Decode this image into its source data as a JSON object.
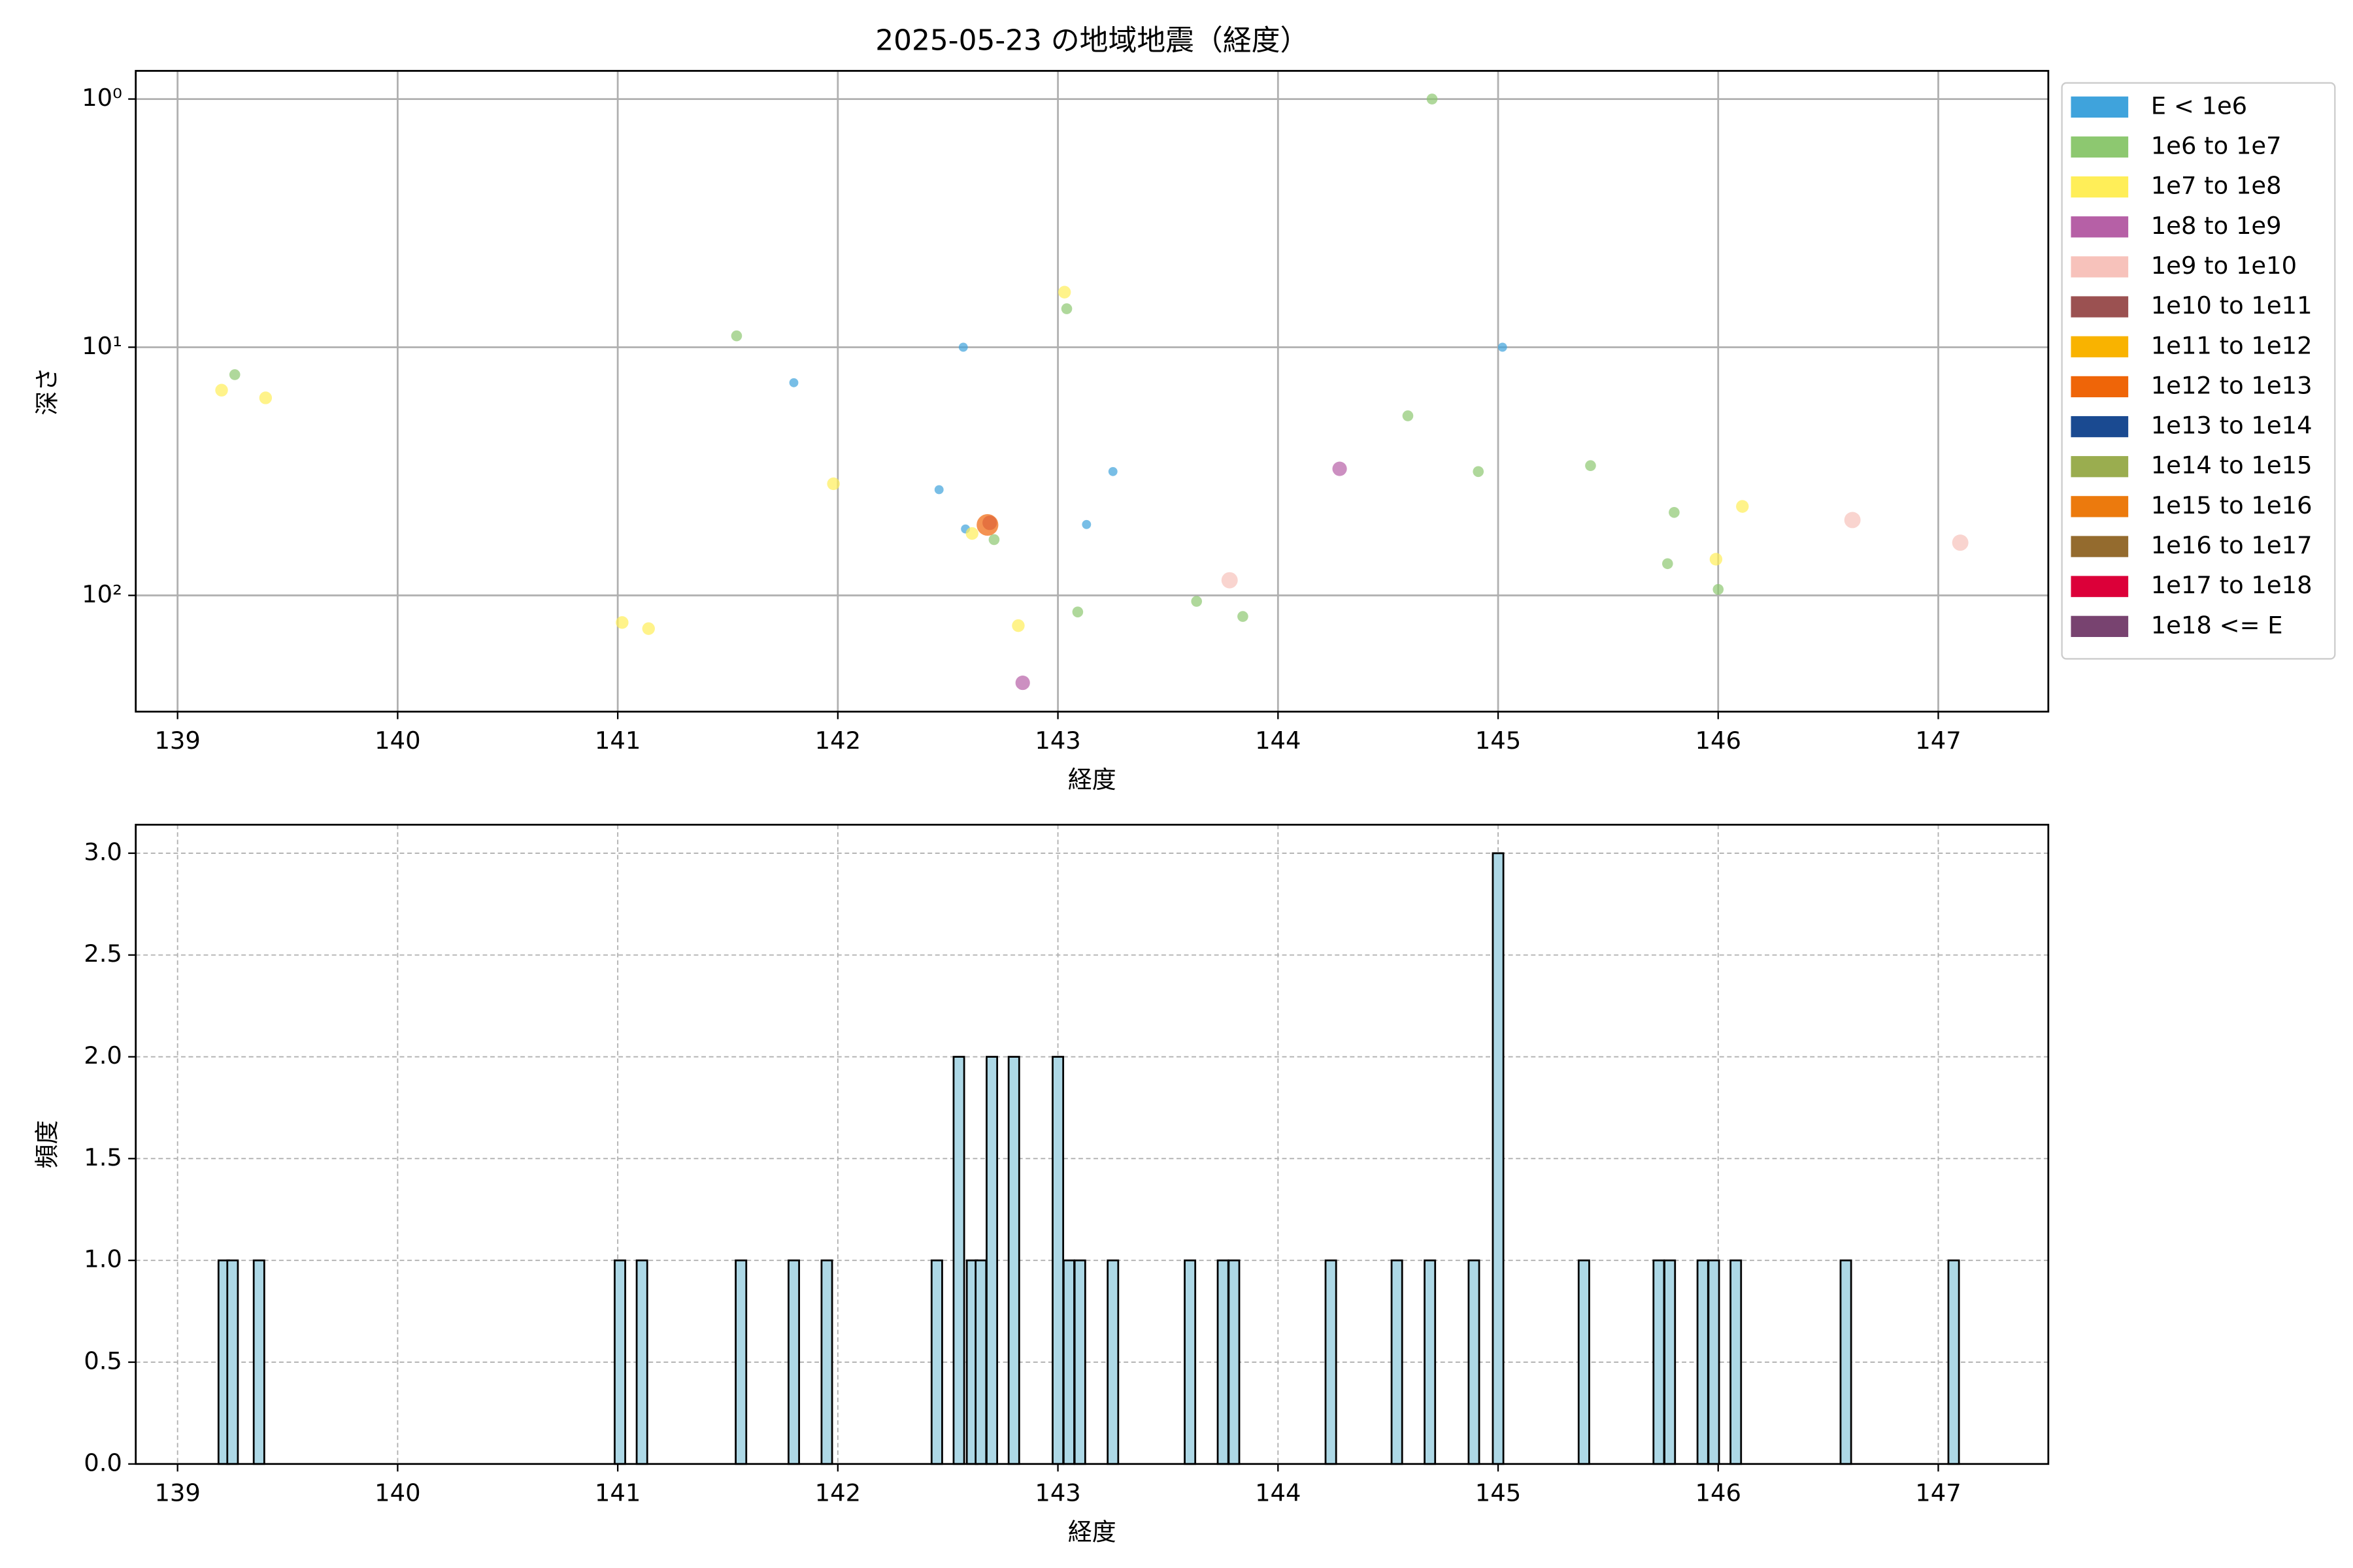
{
  "chart_data": [
    {
      "type": "scatter",
      "title": "2025-05-23 の地域地震（経度）",
      "xlabel": "経度",
      "ylabel": "深さ",
      "xlim": [
        138.81,
        147.5
      ],
      "xticks": [
        139,
        140,
        141,
        142,
        143,
        144,
        145,
        146,
        147
      ],
      "ylim": [
        0.77,
        294
      ],
      "y_log": true,
      "y_inverted": true,
      "yticks": [
        {
          "value": 1,
          "label": "10⁰"
        },
        {
          "value": 10,
          "label": "10¹"
        },
        {
          "value": 100,
          "label": "10²"
        }
      ],
      "grid": true,
      "grid_style": "solid",
      "legend": "outside upper right",
      "alpha": 0.7,
      "series": [
        {
          "name": "E < 1e6",
          "color": "#3fa3dc",
          "x": [
            142.57,
            141.8,
            142.46,
            142.58,
            143.13,
            143.25,
            145.02
          ],
          "values": [
            10,
            13.9,
            37.5,
            54,
            51.8,
            31.7,
            10
          ]
        },
        {
          "name": "1e6 to 1e7",
          "color": "#8dc870",
          "x": [
            144.7,
            139.26,
            141.54,
            143.04,
            144.59,
            144.91,
            145.42,
            145.8,
            145.77,
            146.0,
            142.71,
            143.09,
            143.63,
            143.84
          ],
          "values": [
            1,
            12.9,
            9.0,
            7.0,
            18.9,
            31.7,
            30.0,
            46.3,
            74.5,
            94.6,
            59.6,
            116.6,
            105.7,
            121.6
          ]
        },
        {
          "name": "1e7 to 1e8",
          "color": "#ffee58",
          "x": [
            139.2,
            139.4,
            143.03,
            141.98,
            142.61,
            141.02,
            141.14,
            142.82,
            146.11,
            145.99
          ],
          "values": [
            14.9,
            16.0,
            6.0,
            35.5,
            56.3,
            128.6,
            136.1,
            132.4,
            43.8,
            71.5
          ]
        },
        {
          "name": "1e8 to 1e9",
          "color": "#b660a6",
          "x": [
            144.28,
            142.84,
            142.69
          ],
          "values": [
            30.9,
            225,
            51
          ]
        },
        {
          "name": "1e9 to 1e10",
          "color": "#f7c2bb",
          "x": [
            143.78,
            146.61,
            147.1
          ],
          "values": [
            86.9,
            49.7,
            61.3
          ]
        },
        {
          "name": "1e10 to 1e11",
          "color": "#9b5151",
          "x": [],
          "values": []
        },
        {
          "name": "1e11 to 1e12",
          "color": "#f9b300",
          "x": [],
          "values": []
        },
        {
          "name": "1e12 to 1e13",
          "color": "#ef6508",
          "x": [
            142.68
          ],
          "values": [
            52
          ]
        },
        {
          "name": "1e13 to 1e14",
          "color": "#1a4a91",
          "x": [],
          "values": []
        },
        {
          "name": "1e14 to 1e15",
          "color": "#9aad4f",
          "x": [],
          "values": []
        },
        {
          "name": "1e15 to 1e16",
          "color": "#ec7a0d",
          "x": [],
          "values": []
        },
        {
          "name": "1e16 to 1e17",
          "color": "#946b2e",
          "x": [],
          "values": []
        },
        {
          "name": "1e17 to 1e18",
          "color": "#dc0039",
          "x": [],
          "values": []
        },
        {
          "name": "1e18 <= E",
          "color": "#784370",
          "x": [],
          "values": []
        }
      ]
    },
    {
      "type": "bar",
      "xlabel": "経度",
      "ylabel": "頻度",
      "xlim": [
        138.81,
        147.5
      ],
      "xticks": [
        139,
        140,
        141,
        142,
        143,
        144,
        145,
        146,
        147
      ],
      "ylim": [
        0,
        3.14
      ],
      "yticks": [
        {
          "value": 0,
          "label": "0.0"
        },
        {
          "value": 0.5,
          "label": "0.5"
        },
        {
          "value": 1,
          "label": "1.0"
        },
        {
          "value": 1.5,
          "label": "1.5"
        },
        {
          "value": 2,
          "label": "2.0"
        },
        {
          "value": 2.5,
          "label": "2.5"
        },
        {
          "value": 3,
          "label": "3.0"
        }
      ],
      "grid": true,
      "grid_style": "dashed",
      "color": "#add8e6",
      "edgecolor": "#000000",
      "x": [
        139.21,
        139.25,
        139.37,
        141.01,
        141.11,
        141.56,
        141.8,
        141.95,
        142.45,
        142.55,
        142.61,
        142.65,
        142.7,
        142.8,
        143.0,
        143.05,
        143.1,
        143.25,
        143.6,
        143.75,
        143.8,
        144.24,
        144.54,
        144.69,
        144.89,
        145.0,
        145.39,
        145.73,
        145.78,
        145.93,
        145.98,
        146.08,
        146.58,
        147.07
      ],
      "values": [
        1,
        1,
        1,
        1,
        1,
        1,
        1,
        1,
        1,
        2,
        1,
        1,
        2,
        2,
        2,
        1,
        1,
        1,
        1,
        1,
        1,
        1,
        1,
        1,
        1,
        3,
        1,
        1,
        1,
        1,
        1,
        1,
        1,
        1
      ]
    }
  ]
}
